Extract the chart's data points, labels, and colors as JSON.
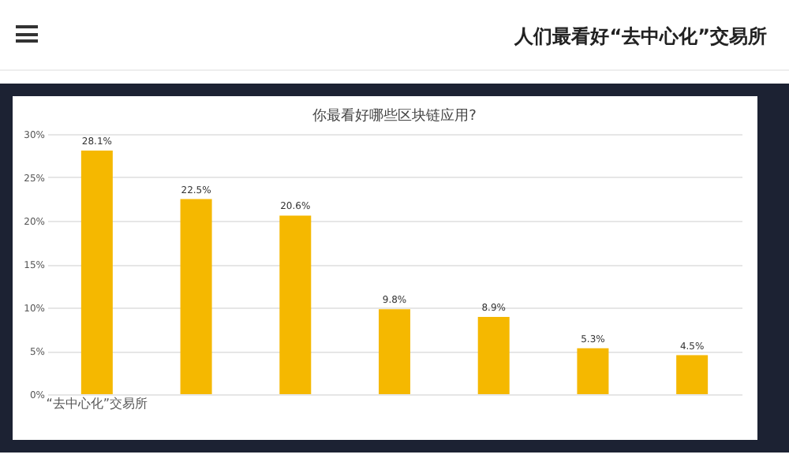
{
  "chart_data": {
    "type": "bar",
    "title": "你最看好哪些区块链应用?",
    "annotations": [
      "人们最看好“去中心化”交易所"
    ],
    "categories": [
      "“去中心化”交易所",
      null,
      null,
      null,
      null,
      null,
      null
    ],
    "values": [
      28.1,
      22.5,
      20.6,
      9.8,
      8.9,
      5.3,
      4.5
    ],
    "color": "#f5b800",
    "ylim": [
      0,
      30
    ],
    "yticks": [
      {
        "value": 0,
        "label": "0%"
      },
      {
        "value": 5,
        "label": "5%"
      },
      {
        "value": 10,
        "label": "10%"
      },
      {
        "value": 15,
        "label": "15%"
      },
      {
        "value": 20,
        "label": "20%"
      },
      {
        "value": 25,
        "label": "25%"
      },
      {
        "value": 30,
        "label": "30%"
      }
    ],
    "grid": "y",
    "data_labels": true,
    "value_labels": [
      "28.1%",
      "22.5%",
      "20.6%",
      "9.8%",
      "8.9%",
      "5.3%",
      "4.5%"
    ]
  }
}
